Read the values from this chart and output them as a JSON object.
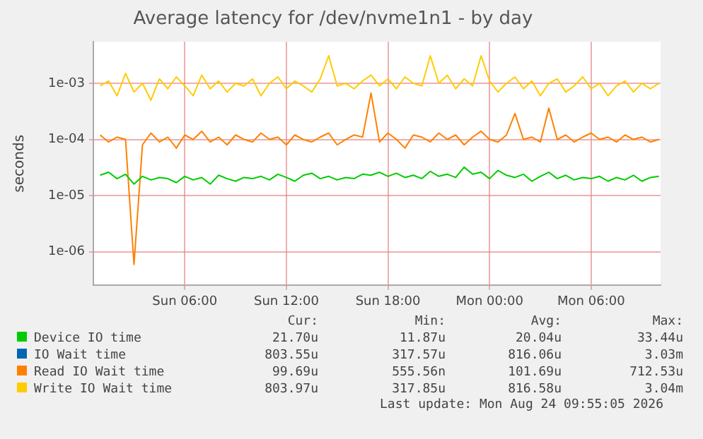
{
  "chart_data": {
    "type": "line",
    "title": "Average latency for /dev/nvme1n1 - by day",
    "ylabel": "seconds",
    "log": "y",
    "grid": true,
    "legend": "bottom",
    "marker": "none",
    "line_style": "solid",
    "xlim": [
      "2026-08-23T00:36",
      "2026-08-24T10:06"
    ],
    "xticks": [
      {
        "value": "2026-08-23T06:00",
        "label": "Sun 06:00"
      },
      {
        "value": "2026-08-23T12:00",
        "label": "Sun 12:00"
      },
      {
        "value": "2026-08-23T18:00",
        "label": "Sun 18:00"
      },
      {
        "value": "2026-08-24T00:00",
        "label": "Mon 00:00"
      },
      {
        "value": "2026-08-24T06:00",
        "label": "Mon 06:00"
      }
    ],
    "ylim": [
      2.5e-07,
      0.0055
    ],
    "yticks": [
      {
        "value": 1e-06,
        "label": "1e-06"
      },
      {
        "value": 1e-05,
        "label": "1e-05"
      },
      {
        "value": 0.0001,
        "label": "1e-04"
      },
      {
        "value": 0.001,
        "label": "1e-03"
      }
    ],
    "x": [
      "2026-08-23T01:00",
      "2026-08-23T01:30",
      "2026-08-23T02:00",
      "2026-08-23T02:30",
      "2026-08-23T03:00",
      "2026-08-23T03:30",
      "2026-08-23T04:00",
      "2026-08-23T04:30",
      "2026-08-23T05:00",
      "2026-08-23T05:30",
      "2026-08-23T06:00",
      "2026-08-23T06:30",
      "2026-08-23T07:00",
      "2026-08-23T07:30",
      "2026-08-23T08:00",
      "2026-08-23T08:30",
      "2026-08-23T09:00",
      "2026-08-23T09:30",
      "2026-08-23T10:00",
      "2026-08-23T10:30",
      "2026-08-23T11:00",
      "2026-08-23T11:30",
      "2026-08-23T12:00",
      "2026-08-23T12:30",
      "2026-08-23T13:00",
      "2026-08-23T13:30",
      "2026-08-23T14:00",
      "2026-08-23T14:30",
      "2026-08-23T15:00",
      "2026-08-23T15:30",
      "2026-08-23T16:00",
      "2026-08-23T16:30",
      "2026-08-23T17:00",
      "2026-08-23T17:30",
      "2026-08-23T18:00",
      "2026-08-23T18:30",
      "2026-08-23T19:00",
      "2026-08-23T19:30",
      "2026-08-23T20:00",
      "2026-08-23T20:30",
      "2026-08-23T21:00",
      "2026-08-23T21:30",
      "2026-08-23T22:00",
      "2026-08-23T22:30",
      "2026-08-23T23:00",
      "2026-08-23T23:30",
      "2026-08-24T00:00",
      "2026-08-24T00:30",
      "2026-08-24T01:00",
      "2026-08-24T01:30",
      "2026-08-24T02:00",
      "2026-08-24T02:30",
      "2026-08-24T03:00",
      "2026-08-24T03:30",
      "2026-08-24T04:00",
      "2026-08-24T04:30",
      "2026-08-24T05:00",
      "2026-08-24T05:30",
      "2026-08-24T06:00",
      "2026-08-24T06:30",
      "2026-08-24T07:00",
      "2026-08-24T07:30",
      "2026-08-24T08:00",
      "2026-08-24T08:30",
      "2026-08-24T09:00",
      "2026-08-24T09:30",
      "2026-08-24T10:00"
    ],
    "series": [
      {
        "name": "Device IO time",
        "color": "#00cc00",
        "values": [
          2.3e-05,
          2.6e-05,
          2e-05,
          2.4e-05,
          1.6e-05,
          2.2e-05,
          1.9e-05,
          2.1e-05,
          2e-05,
          1.7e-05,
          2.2e-05,
          1.9e-05,
          2.1e-05,
          1.6e-05,
          2.3e-05,
          2e-05,
          1.8e-05,
          2.1e-05,
          2e-05,
          2.2e-05,
          1.9e-05,
          2.4e-05,
          2.1e-05,
          1.8e-05,
          2.3e-05,
          2.5e-05,
          2e-05,
          2.2e-05,
          1.9e-05,
          2.1e-05,
          2e-05,
          2.4e-05,
          2.3e-05,
          2.6e-05,
          2.2e-05,
          2.5e-05,
          2.1e-05,
          2.3e-05,
          2e-05,
          2.7e-05,
          2.2e-05,
          2.4e-05,
          2.1e-05,
          3.2e-05,
          2.4e-05,
          2.6e-05,
          2e-05,
          2.8e-05,
          2.3e-05,
          2.1e-05,
          2.4e-05,
          1.8e-05,
          2.2e-05,
          2.6e-05,
          2e-05,
          2.3e-05,
          1.9e-05,
          2.1e-05,
          2e-05,
          2.2e-05,
          1.8e-05,
          2.1e-05,
          1.9e-05,
          2.3e-05,
          1.8e-05,
          2.1e-05,
          2.2e-05
        ]
      },
      {
        "name": "IO Wait time",
        "color": "#0066b3",
        "values": [
          null,
          null,
          null,
          null,
          null,
          null,
          null,
          null,
          null,
          null,
          null,
          null,
          null,
          null,
          null,
          null,
          null,
          null,
          null,
          null,
          null,
          null,
          null,
          null,
          null,
          null,
          null,
          null,
          null,
          null,
          null,
          null,
          null,
          null,
          null,
          null,
          null,
          null,
          null,
          null,
          null,
          null,
          null,
          null,
          null,
          null,
          null,
          null,
          null,
          null,
          null,
          null,
          null,
          null,
          null,
          null,
          null,
          null,
          null,
          null,
          null,
          null,
          null,
          null,
          null,
          null,
          null
        ]
      },
      {
        "name": "Read IO Wait time",
        "color": "#ff8000",
        "values": [
          0.00012,
          9e-05,
          0.00011,
          0.0001,
          5.9e-07,
          8e-05,
          0.00013,
          9e-05,
          0.00011,
          7e-05,
          0.00012,
          0.0001,
          0.00014,
          9e-05,
          0.00011,
          8e-05,
          0.00012,
          0.0001,
          9e-05,
          0.00013,
          0.0001,
          0.00011,
          8e-05,
          0.00012,
          0.0001,
          9e-05,
          0.00011,
          0.00013,
          8e-05,
          0.0001,
          0.00012,
          0.00011,
          0.00067,
          9e-05,
          0.00013,
          0.0001,
          7e-05,
          0.00012,
          0.00011,
          9e-05,
          0.00013,
          0.0001,
          0.00012,
          8e-05,
          0.00011,
          0.00014,
          0.0001,
          9e-05,
          0.00012,
          0.00029,
          0.0001,
          0.00011,
          9e-05,
          0.00036,
          0.0001,
          0.00012,
          9e-05,
          0.00011,
          0.00013,
          0.0001,
          0.00011,
          9e-05,
          0.00012,
          0.0001,
          0.00011,
          9e-05,
          0.0001
        ]
      },
      {
        "name": "Write IO Wait time",
        "color": "#ffcc00",
        "values": [
          0.0009,
          0.0011,
          0.0006,
          0.0015,
          0.0007,
          0.001,
          0.0005,
          0.0012,
          0.0008,
          0.0013,
          0.0009,
          0.0006,
          0.0014,
          0.0008,
          0.0011,
          0.0007,
          0.001,
          0.0009,
          0.0012,
          0.0006,
          0.001,
          0.0013,
          0.0008,
          0.0011,
          0.0009,
          0.0007,
          0.0012,
          0.0031,
          0.0009,
          0.001,
          0.0008,
          0.0011,
          0.0014,
          0.0009,
          0.0012,
          0.0008,
          0.0013,
          0.001,
          0.0009,
          0.0031,
          0.001,
          0.0014,
          0.0008,
          0.0012,
          0.0009,
          0.0031,
          0.0011,
          0.0007,
          0.001,
          0.0013,
          0.0008,
          0.0011,
          0.0006,
          0.001,
          0.0012,
          0.0007,
          0.0009,
          0.0013,
          0.0008,
          0.001,
          0.0006,
          0.0009,
          0.0011,
          0.0007,
          0.001,
          0.0008,
          0.001
        ]
      }
    ],
    "annotations": [
      "Cur:",
      "Min:",
      "Avg:",
      "Max:",
      "21.70u",
      "11.87u",
      "20.04u",
      "33.44u",
      "803.55u",
      "317.57u",
      "816.06u",
      "3.03m",
      "99.69u",
      "555.56n",
      "101.69u",
      "712.53u",
      "803.97u",
      "317.85u",
      "816.58u",
      "3.04m",
      "Last update: Mon Aug 24 09:55:05 2026"
    ]
  }
}
